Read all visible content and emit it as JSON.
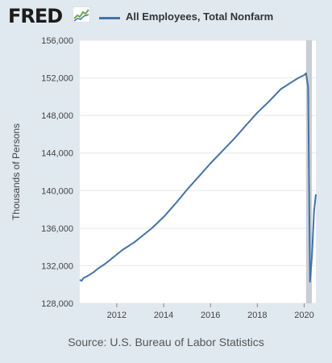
{
  "header": {
    "logo_text": "FRED",
    "logo_icon": "fred-spark-chart-icon",
    "legend_label": "All Employees, Total Nonfarm"
  },
  "colors": {
    "background": "#e1e9f0",
    "plot_background": "#ffffff",
    "series": "#4572a7",
    "recession_shading": "#c9ced3",
    "grid": "#e8e8e8"
  },
  "source_text": "Source: U.S. Bureau of Labor Statistics",
  "chart_data": {
    "type": "line",
    "title": "",
    "xlabel": "",
    "ylabel": "Thousands of Persons",
    "xlim": [
      2010.42,
      2020.5
    ],
    "ylim": [
      128000,
      156000
    ],
    "yticks": [
      128000,
      132000,
      136000,
      140000,
      144000,
      148000,
      152000,
      156000
    ],
    "yticklabels": [
      "128,000",
      "132,000",
      "136,000",
      "140,000",
      "144,000",
      "148,000",
      "152,000",
      "156,000"
    ],
    "xticks": [
      2012,
      2014,
      2016,
      2018,
      2020
    ],
    "xticklabels": [
      "2012",
      "2014",
      "2016",
      "2018",
      "2020"
    ],
    "grid": "horizontal",
    "shaded_regions": [
      {
        "x0": 2020.08,
        "x1": 2020.33,
        "label": "recession"
      }
    ],
    "series": [
      {
        "name": "All Employees, Total Nonfarm",
        "x": [
          2010.42,
          2010.5,
          2010.58,
          2010.75,
          2011.0,
          2011.25,
          2011.5,
          2011.75,
          2012.0,
          2012.25,
          2012.5,
          2012.75,
          2013.0,
          2013.5,
          2014.0,
          2014.5,
          2015.0,
          2015.5,
          2016.0,
          2016.5,
          2017.0,
          2017.5,
          2018.0,
          2018.5,
          2019.0,
          2019.5,
          2019.75,
          2020.0,
          2020.08,
          2020.17,
          2020.25,
          2020.33,
          2020.42,
          2020.5
        ],
        "values": [
          130500,
          130400,
          130700,
          130900,
          131300,
          131800,
          132200,
          132700,
          133200,
          133700,
          134100,
          134500,
          135000,
          136000,
          137200,
          138600,
          140100,
          141500,
          142900,
          144200,
          145500,
          146900,
          148300,
          149500,
          150800,
          151600,
          152000,
          152300,
          152500,
          151000,
          130300,
          133000,
          137800,
          139600
        ]
      }
    ]
  }
}
